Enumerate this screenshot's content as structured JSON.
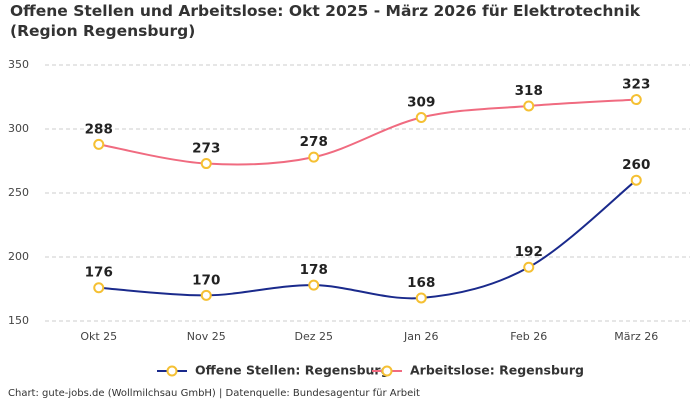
{
  "chart_data": {
    "type": "line",
    "title": "Offene Stellen und Arbeitslose: Okt 2025 - März 2026 für Elektrotechnik (Region Regensburg)",
    "categories": [
      "Okt 25",
      "Nov 25",
      "Dez 25",
      "Jan 26",
      "Feb 26",
      "März 26"
    ],
    "series": [
      {
        "name": "Offene Stellen: Regensburg",
        "color": "#1a2a8c",
        "values": [
          176,
          170,
          178,
          168,
          192,
          260
        ]
      },
      {
        "name": "Arbeitslose: Regensburg",
        "color": "#f06b80",
        "values": [
          288,
          273,
          278,
          309,
          318,
          323
        ]
      }
    ],
    "marker_color": "#f5c033",
    "ylim": [
      150,
      350
    ],
    "yticks": [
      150,
      200,
      250,
      300,
      350
    ],
    "grid": true,
    "legend": "bottom",
    "source": "Chart: gute-jobs.de (Wollmilchsau GmbH) | Datenquelle: Bundesagentur für Arbeit"
  }
}
